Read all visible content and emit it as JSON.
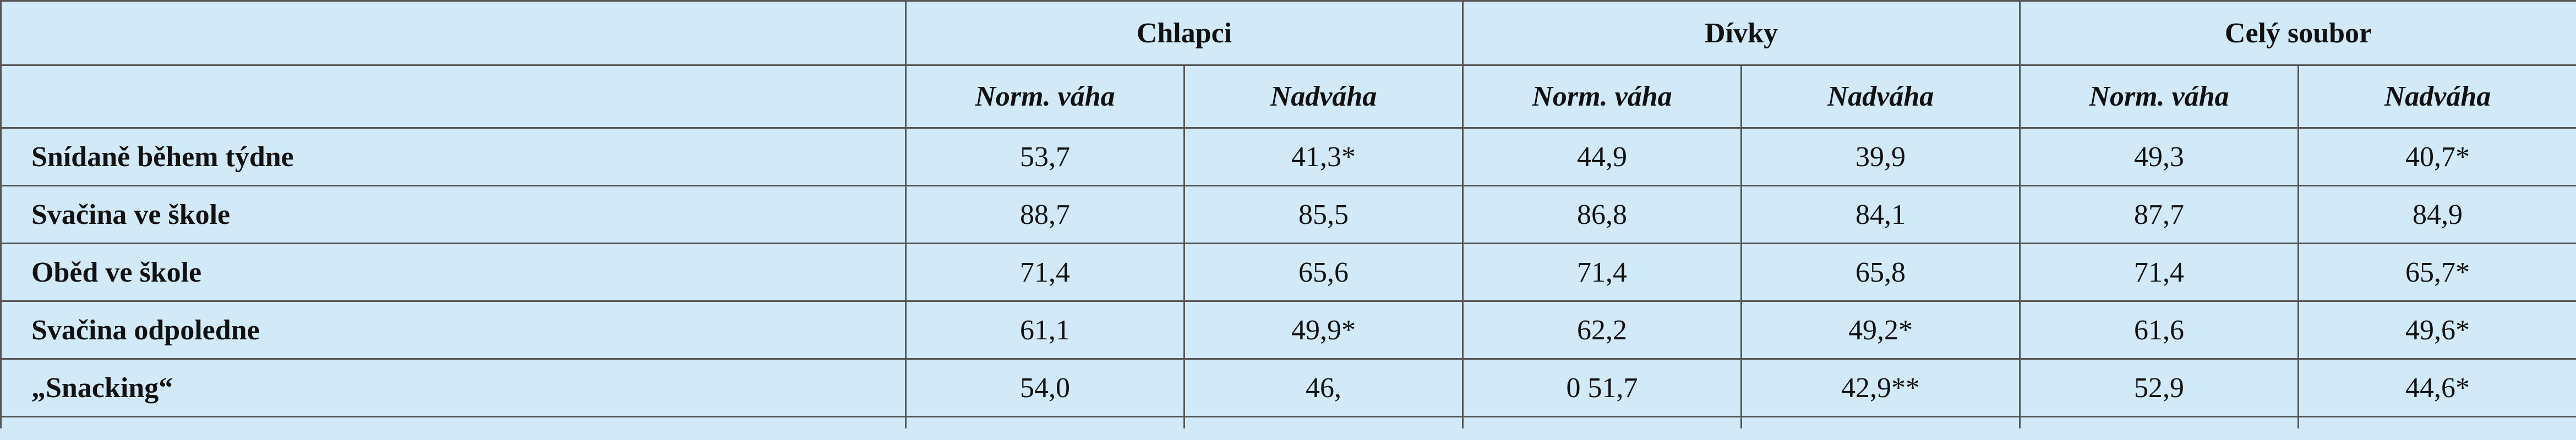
{
  "table": {
    "groups": [
      "Chlapci",
      "Dívky",
      "Celý soubor"
    ],
    "subheaders": [
      "Norm. váha",
      "Nadváha",
      "Norm. váha",
      "Nadváha",
      "Norm. váha",
      "Nadváha"
    ],
    "rows": [
      [
        "Snídaně během týdne",
        "53,7",
        "41,3*",
        "44,9",
        "39,9",
        "49,3",
        "40,7*"
      ],
      [
        "Svačina ve škole",
        "88,7",
        "85,5",
        "86,8",
        "84,1",
        "87,7",
        "84,9"
      ],
      [
        "Oběd ve škole",
        "71,4",
        "65,6",
        "71,4",
        "65,8",
        "71,4",
        "65,7*"
      ],
      [
        "Svačina odpoledne",
        "61,1",
        "49,9*",
        "62,2",
        "49,2*",
        "61,6",
        "49,6*"
      ],
      [
        "„Snacking“",
        "54,0",
        "46,",
        "0 51,7",
        "42,9**",
        "52,9",
        "44,6*"
      ]
    ]
  }
}
